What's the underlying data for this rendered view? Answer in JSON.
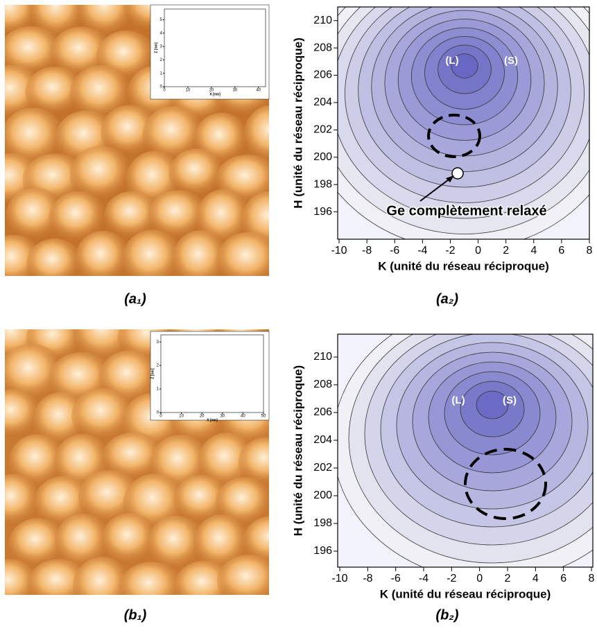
{
  "panels": [
    {
      "label": "(a₁)",
      "inset": {
        "xlabel": "X [nm]",
        "ylabel": "Z [nm]",
        "xlim": [
          0,
          43
        ],
        "ylim": [
          0,
          5.8
        ],
        "xticks": [
          0,
          10,
          20,
          30,
          40
        ],
        "yticks": [
          0,
          1,
          2,
          3,
          4,
          5
        ]
      }
    },
    {
      "label": "(a₂)",
      "xlabel": "K (unité du réseau réciproque)",
      "ylabel": "H (unité du réseau réciproque)",
      "xlim": [
        -10.1,
        8
      ],
      "ylim": [
        194,
        211
      ],
      "xticks": [
        -10,
        -8,
        -6,
        -4,
        -2,
        0,
        2,
        4,
        6,
        8
      ],
      "yticks": [
        196,
        198,
        200,
        202,
        204,
        206,
        208,
        210
      ],
      "annotations": [
        "(L)",
        "(S)",
        "Ge complètement relaxé"
      ]
    },
    {
      "label": "(b₁)",
      "inset": {
        "xlabel": "X [nm]",
        "ylabel": "Z [nm]",
        "xlim": [
          0,
          50
        ],
        "ylim": [
          0,
          3.3
        ],
        "xticks": [
          0,
          10,
          20,
          30,
          40,
          50
        ],
        "yticks": [
          0,
          1,
          2,
          3
        ]
      }
    },
    {
      "label": "(b₂)",
      "xlabel": "K (unité du réseau réciproque)",
      "ylabel": "H (unité du réseau réciproque)",
      "xlim": [
        -10.15,
        8.1
      ],
      "ylim": [
        194.85,
        211.65
      ],
      "xticks": [
        -10,
        -8,
        -6,
        -4,
        -2,
        0,
        2,
        4,
        6,
        8
      ],
      "yticks": [
        196,
        198,
        200,
        202,
        204,
        206,
        208,
        210
      ],
      "annotations": [
        "(L)",
        "(S)"
      ]
    }
  ]
}
